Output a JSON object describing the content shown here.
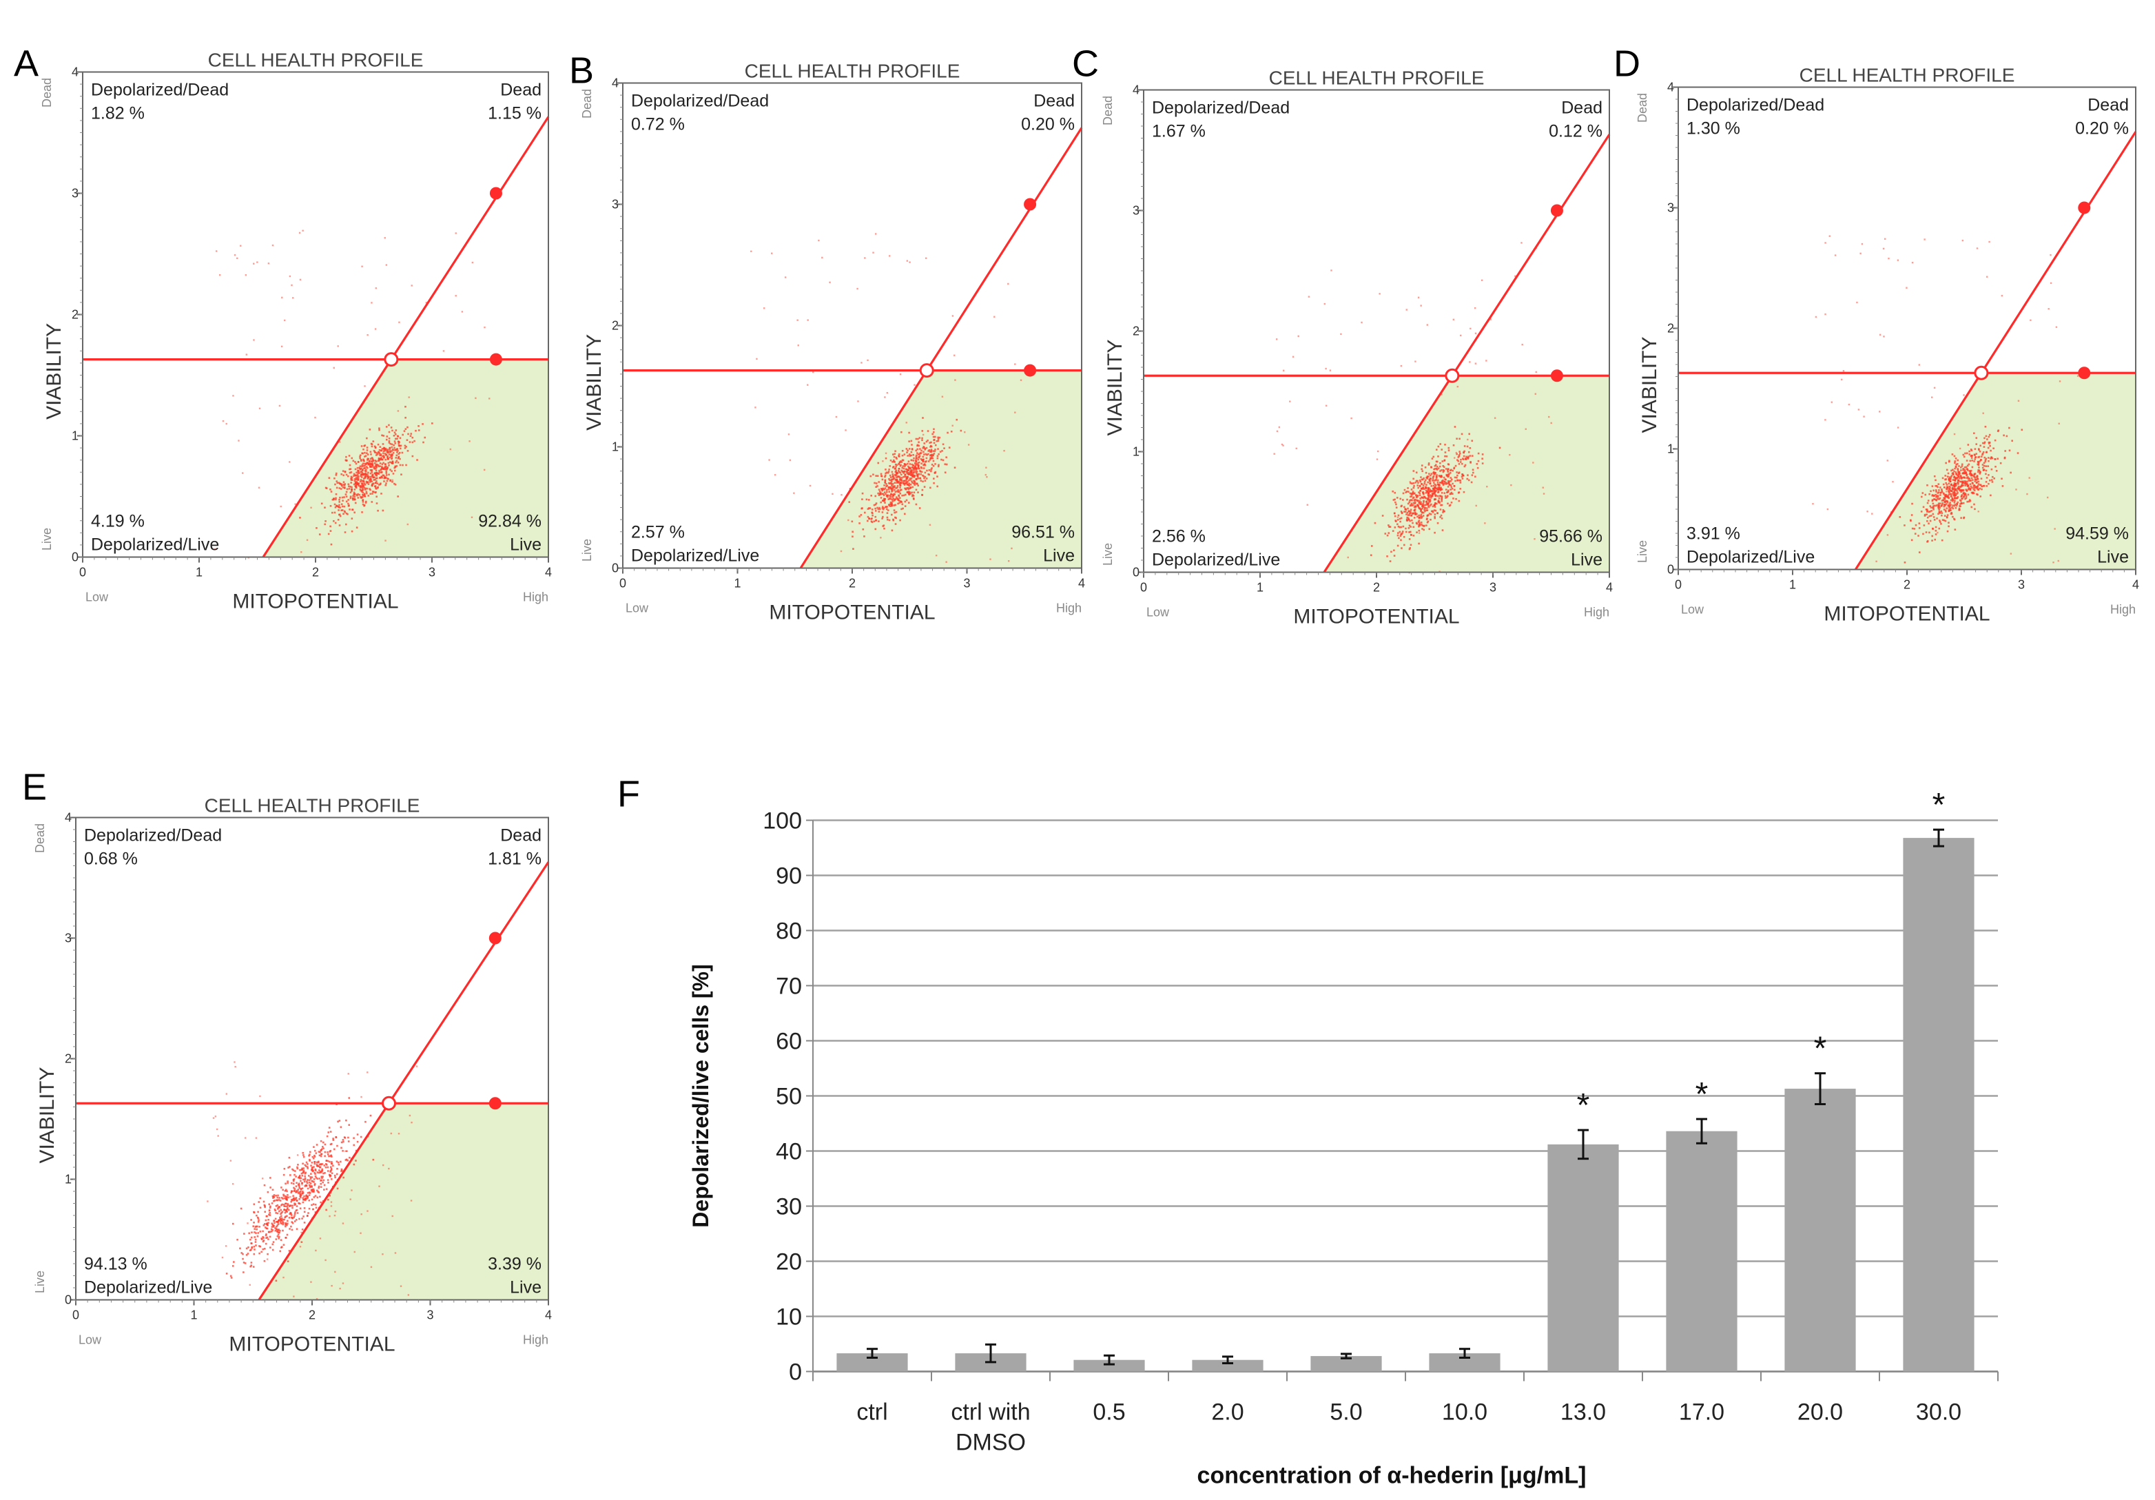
{
  "chart_data": [
    {
      "type": "scatter",
      "panel": "A",
      "title": "CELL HEALTH PROFILE",
      "xlabel": "MITOPOTENTIAL",
      "ylabel": "VIABILITY",
      "x_low": "Low",
      "x_high": "High",
      "y_low": "Live",
      "y_high": "Dead",
      "xlim": [
        0,
        4
      ],
      "ylim": [
        0,
        4
      ],
      "ticks": [
        "0",
        "1",
        "2",
        "3",
        "4"
      ],
      "quadrants": {
        "top_left": {
          "label": "Depolarized/Dead",
          "value": "1.82 %"
        },
        "top_right": {
          "label": "Dead",
          "value": "1.15 %"
        },
        "bottom_left": {
          "label": "Depolarized/Live",
          "value": "4.19 %"
        },
        "bottom_right": {
          "label": "Live",
          "value": "92.84 %"
        }
      },
      "gate": {
        "horizontal_y": 1.63,
        "diag_start": [
          1.55,
          0
        ],
        "cross": [
          2.65,
          1.63
        ],
        "handle_upper": [
          3.55,
          3.0
        ],
        "handle_lower": [
          3.55,
          1.63
        ]
      },
      "cluster_center": [
        2.45,
        0.7
      ]
    },
    {
      "type": "scatter",
      "panel": "B",
      "title": "CELL HEALTH PROFILE",
      "xlabel": "MITOPOTENTIAL",
      "ylabel": "VIABILITY",
      "x_low": "Low",
      "x_high": "High",
      "y_low": "Live",
      "y_high": "Dead",
      "xlim": [
        0,
        4
      ],
      "ylim": [
        0,
        4
      ],
      "ticks": [
        "0",
        "1",
        "2",
        "3",
        "4"
      ],
      "quadrants": {
        "top_left": {
          "label": "Depolarized/Dead",
          "value": "0.72 %"
        },
        "top_right": {
          "label": "Dead",
          "value": "0.20 %"
        },
        "bottom_left": {
          "label": "Depolarized/Live",
          "value": "2.57 %"
        },
        "bottom_right": {
          "label": "Live",
          "value": "96.51 %"
        }
      },
      "gate": {
        "horizontal_y": 1.63,
        "diag_start": [
          1.55,
          0
        ],
        "cross": [
          2.65,
          1.63
        ],
        "handle_upper": [
          3.55,
          3.0
        ],
        "handle_lower": [
          3.55,
          1.63
        ]
      },
      "cluster_center": [
        2.45,
        0.75
      ]
    },
    {
      "type": "scatter",
      "panel": "C",
      "title": "CELL HEALTH PROFILE",
      "xlabel": "MITOPOTENTIAL",
      "ylabel": "VIABILITY",
      "x_low": "Low",
      "x_high": "High",
      "y_low": "Live",
      "y_high": "Dead",
      "xlim": [
        0,
        4
      ],
      "ylim": [
        0,
        4
      ],
      "ticks": [
        "0",
        "1",
        "2",
        "3",
        "4"
      ],
      "quadrants": {
        "top_left": {
          "label": "Depolarized/Dead",
          "value": "1.67 %"
        },
        "top_right": {
          "label": "Dead",
          "value": "0.12 %"
        },
        "bottom_left": {
          "label": "Depolarized/Live",
          "value": "2.56 %"
        },
        "bottom_right": {
          "label": "Live",
          "value": "95.66 %"
        }
      },
      "gate": {
        "horizontal_y": 1.63,
        "diag_start": [
          1.55,
          0
        ],
        "cross": [
          2.65,
          1.63
        ],
        "handle_upper": [
          3.55,
          3.0
        ],
        "handle_lower": [
          3.55,
          1.63
        ]
      },
      "cluster_center": [
        2.45,
        0.65
      ]
    },
    {
      "type": "scatter",
      "panel": "D",
      "title": "CELL HEALTH PROFILE",
      "xlabel": "MITOPOTENTIAL",
      "ylabel": "VIABILITY",
      "x_low": "Low",
      "x_high": "High",
      "y_low": "Live",
      "y_high": "Dead",
      "xlim": [
        0,
        4
      ],
      "ylim": [
        0,
        4
      ],
      "ticks": [
        "0",
        "1",
        "2",
        "3",
        "4"
      ],
      "quadrants": {
        "top_left": {
          "label": "Depolarized/Dead",
          "value": "1.30 %"
        },
        "top_right": {
          "label": "Dead",
          "value": "0.20 %"
        },
        "bottom_left": {
          "label": "Depolarized/Live",
          "value": "3.91 %"
        },
        "bottom_right": {
          "label": "Live",
          "value": "94.59 %"
        }
      },
      "gate": {
        "horizontal_y": 1.63,
        "diag_start": [
          1.55,
          0
        ],
        "cross": [
          2.65,
          1.63
        ],
        "handle_upper": [
          3.55,
          3.0
        ],
        "handle_lower": [
          3.55,
          1.63
        ]
      },
      "cluster_center": [
        2.45,
        0.7
      ]
    },
    {
      "type": "scatter",
      "panel": "E",
      "title": "CELL HEALTH PROFILE",
      "xlabel": "MITOPOTENTIAL",
      "ylabel": "VIABILITY",
      "x_low": "Low",
      "x_high": "High",
      "y_low": "Live",
      "y_high": "Dead",
      "xlim": [
        0,
        4
      ],
      "ylim": [
        0,
        4
      ],
      "ticks": [
        "0",
        "1",
        "2",
        "3",
        "4"
      ],
      "quadrants": {
        "top_left": {
          "label": "Depolarized/Dead",
          "value": "0.68 %"
        },
        "top_right": {
          "label": "Dead",
          "value": "1.81 %"
        },
        "bottom_left": {
          "label": "Depolarized/Live",
          "value": "94.13 %"
        },
        "bottom_right": {
          "label": "Live",
          "value": "3.39 %"
        }
      },
      "gate": {
        "horizontal_y": 1.63,
        "diag_start": [
          1.55,
          0
        ],
        "cross": [
          2.65,
          1.63
        ],
        "handle_upper": [
          3.55,
          3.0
        ],
        "handle_lower": [
          3.55,
          1.63
        ]
      },
      "cluster_center": [
        1.85,
        0.85
      ]
    },
    {
      "type": "bar",
      "panel": "F",
      "title": "",
      "xlabel": "concentration of α-hederin [μg/mL]",
      "ylabel": "Depolarized/live cells [%]",
      "ylim": [
        0,
        100
      ],
      "yticks": [
        "0",
        "10",
        "20",
        "30",
        "40",
        "50",
        "60",
        "70",
        "80",
        "90",
        "100"
      ],
      "categories": [
        [
          "ctrl"
        ],
        [
          "ctrl with",
          "DMSO"
        ],
        [
          "0.5"
        ],
        [
          "2.0"
        ],
        [
          "5.0"
        ],
        [
          "10.0"
        ],
        [
          "13.0"
        ],
        [
          "17.0"
        ],
        [
          "20.0"
        ],
        [
          "30.0"
        ]
      ],
      "values": [
        3.3,
        3.3,
        2.1,
        2.1,
        2.8,
        3.3,
        41.2,
        43.6,
        51.3,
        96.8
      ],
      "errors": [
        0.8,
        1.6,
        0.8,
        0.6,
        0.4,
        0.8,
        2.6,
        2.2,
        2.8,
        1.5
      ],
      "significance": [
        "",
        "",
        "",
        "",
        "",
        "",
        "*",
        "*",
        "*",
        "*"
      ],
      "bar_color": "#a6a6a6",
      "grid": true
    }
  ],
  "colors": {
    "gate": "#ff2a2a",
    "live_region": "#e4f1cc",
    "points": "#ff3b2a"
  }
}
